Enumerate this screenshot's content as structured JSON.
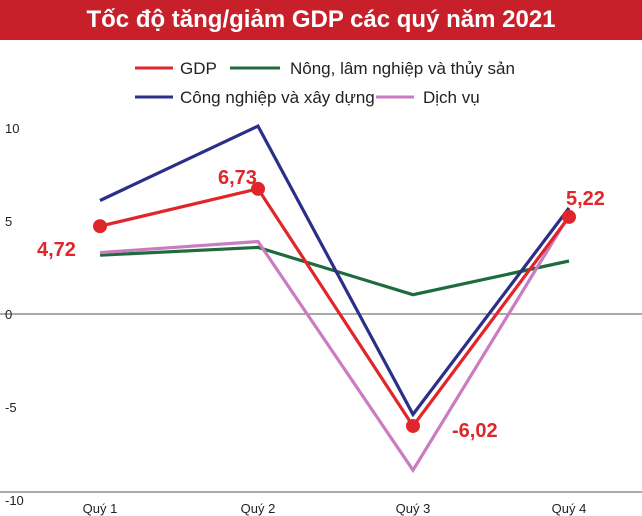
{
  "chart_data": {
    "type": "line",
    "title": "Tốc độ tăng/giảm GDP các quý năm 2021",
    "categories": [
      "Quý 1",
      "Quý 2",
      "Quý 3",
      "Quý 4"
    ],
    "ylim": [
      -10,
      10
    ],
    "yticks": [
      10,
      5,
      0,
      -5,
      -10
    ],
    "grid": false,
    "legend_position": "top",
    "series": [
      {
        "name": "GDP",
        "color": "#e0262b",
        "values": [
          4.72,
          6.73,
          -6.02,
          5.22
        ],
        "labels": [
          "4,72",
          "6,73",
          "-6,02",
          "5,22"
        ]
      },
      {
        "name": "Nông, lâm nghiệp và thủy sản",
        "color": "#1e6b3c",
        "values": [
          3.16,
          3.58,
          1.04,
          2.85
        ]
      },
      {
        "name": "Công nghiệp và xây dựng",
        "color": "#2b2f87",
        "values": [
          6.1,
          10.1,
          -5.4,
          5.7
        ]
      },
      {
        "name": "Dịch vụ",
        "color": "#c97cc0",
        "values": [
          3.3,
          3.9,
          -8.4,
          5.3
        ]
      }
    ]
  }
}
